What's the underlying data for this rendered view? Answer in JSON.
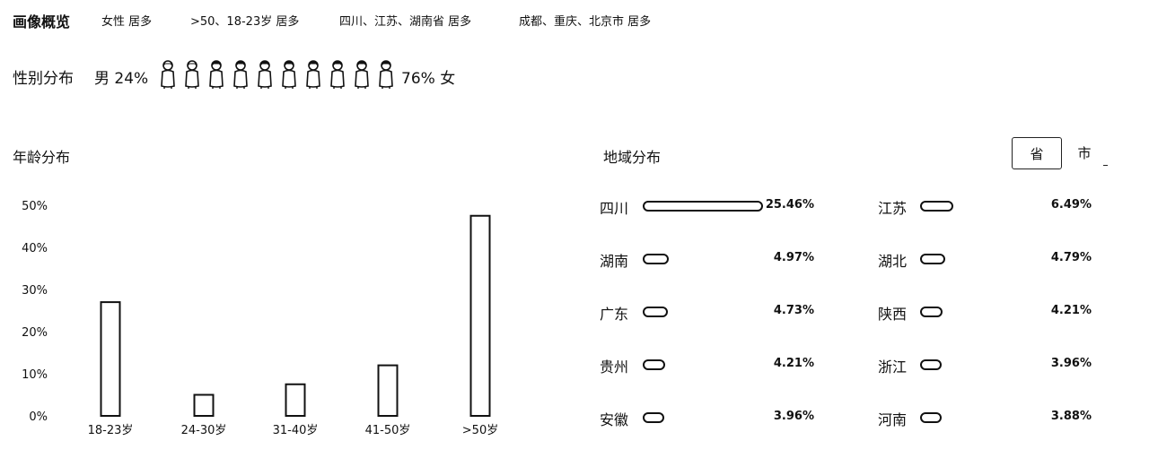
{
  "overview": {
    "title": "画像概览",
    "items": [
      "女性 居多",
      ">50、18-23岁 居多",
      "四川、江苏、湖南省 居多",
      "成都、重庆、北京市 居多"
    ]
  },
  "gender": {
    "title": "性别分布",
    "male_label": "男 24%",
    "female_label": "76% 女",
    "male_share": 0.24,
    "female_share": 0.76,
    "icon_count": 10
  },
  "age": {
    "title": "年龄分布"
  },
  "chart_data": {
    "type": "bar",
    "categories": [
      "18-23岁",
      "24-30岁",
      "31-40岁",
      "41-50岁",
      ">50岁"
    ],
    "values": [
      27,
      5,
      7.5,
      12,
      47.5
    ],
    "ylim": [
      0,
      50
    ],
    "yticks": [
      "0%",
      "10%",
      "20%",
      "30%",
      "40%",
      "50%"
    ],
    "grid": false
  },
  "region": {
    "title": "地域分布",
    "tabs": [
      "省",
      "市"
    ],
    "active_tab": "省",
    "rows_left": [
      {
        "name": "四川",
        "value": "25.46%",
        "share": 25.46
      },
      {
        "name": "湖南",
        "value": "4.97%",
        "share": 4.97
      },
      {
        "name": "广东",
        "value": "4.73%",
        "share": 4.73
      },
      {
        "name": "贵州",
        "value": "4.21%",
        "share": 4.21
      },
      {
        "name": "安徽",
        "value": "3.96%",
        "share": 3.96
      }
    ],
    "rows_right": [
      {
        "name": "江苏",
        "value": "6.49%",
        "share": 6.49
      },
      {
        "name": "湖北",
        "value": "4.79%",
        "share": 4.79
      },
      {
        "name": "陕西",
        "value": "4.21%",
        "share": 4.21
      },
      {
        "name": "浙江",
        "value": "3.96%",
        "share": 3.96
      },
      {
        "name": "河南",
        "value": "3.88%",
        "share": 3.88
      }
    ]
  }
}
